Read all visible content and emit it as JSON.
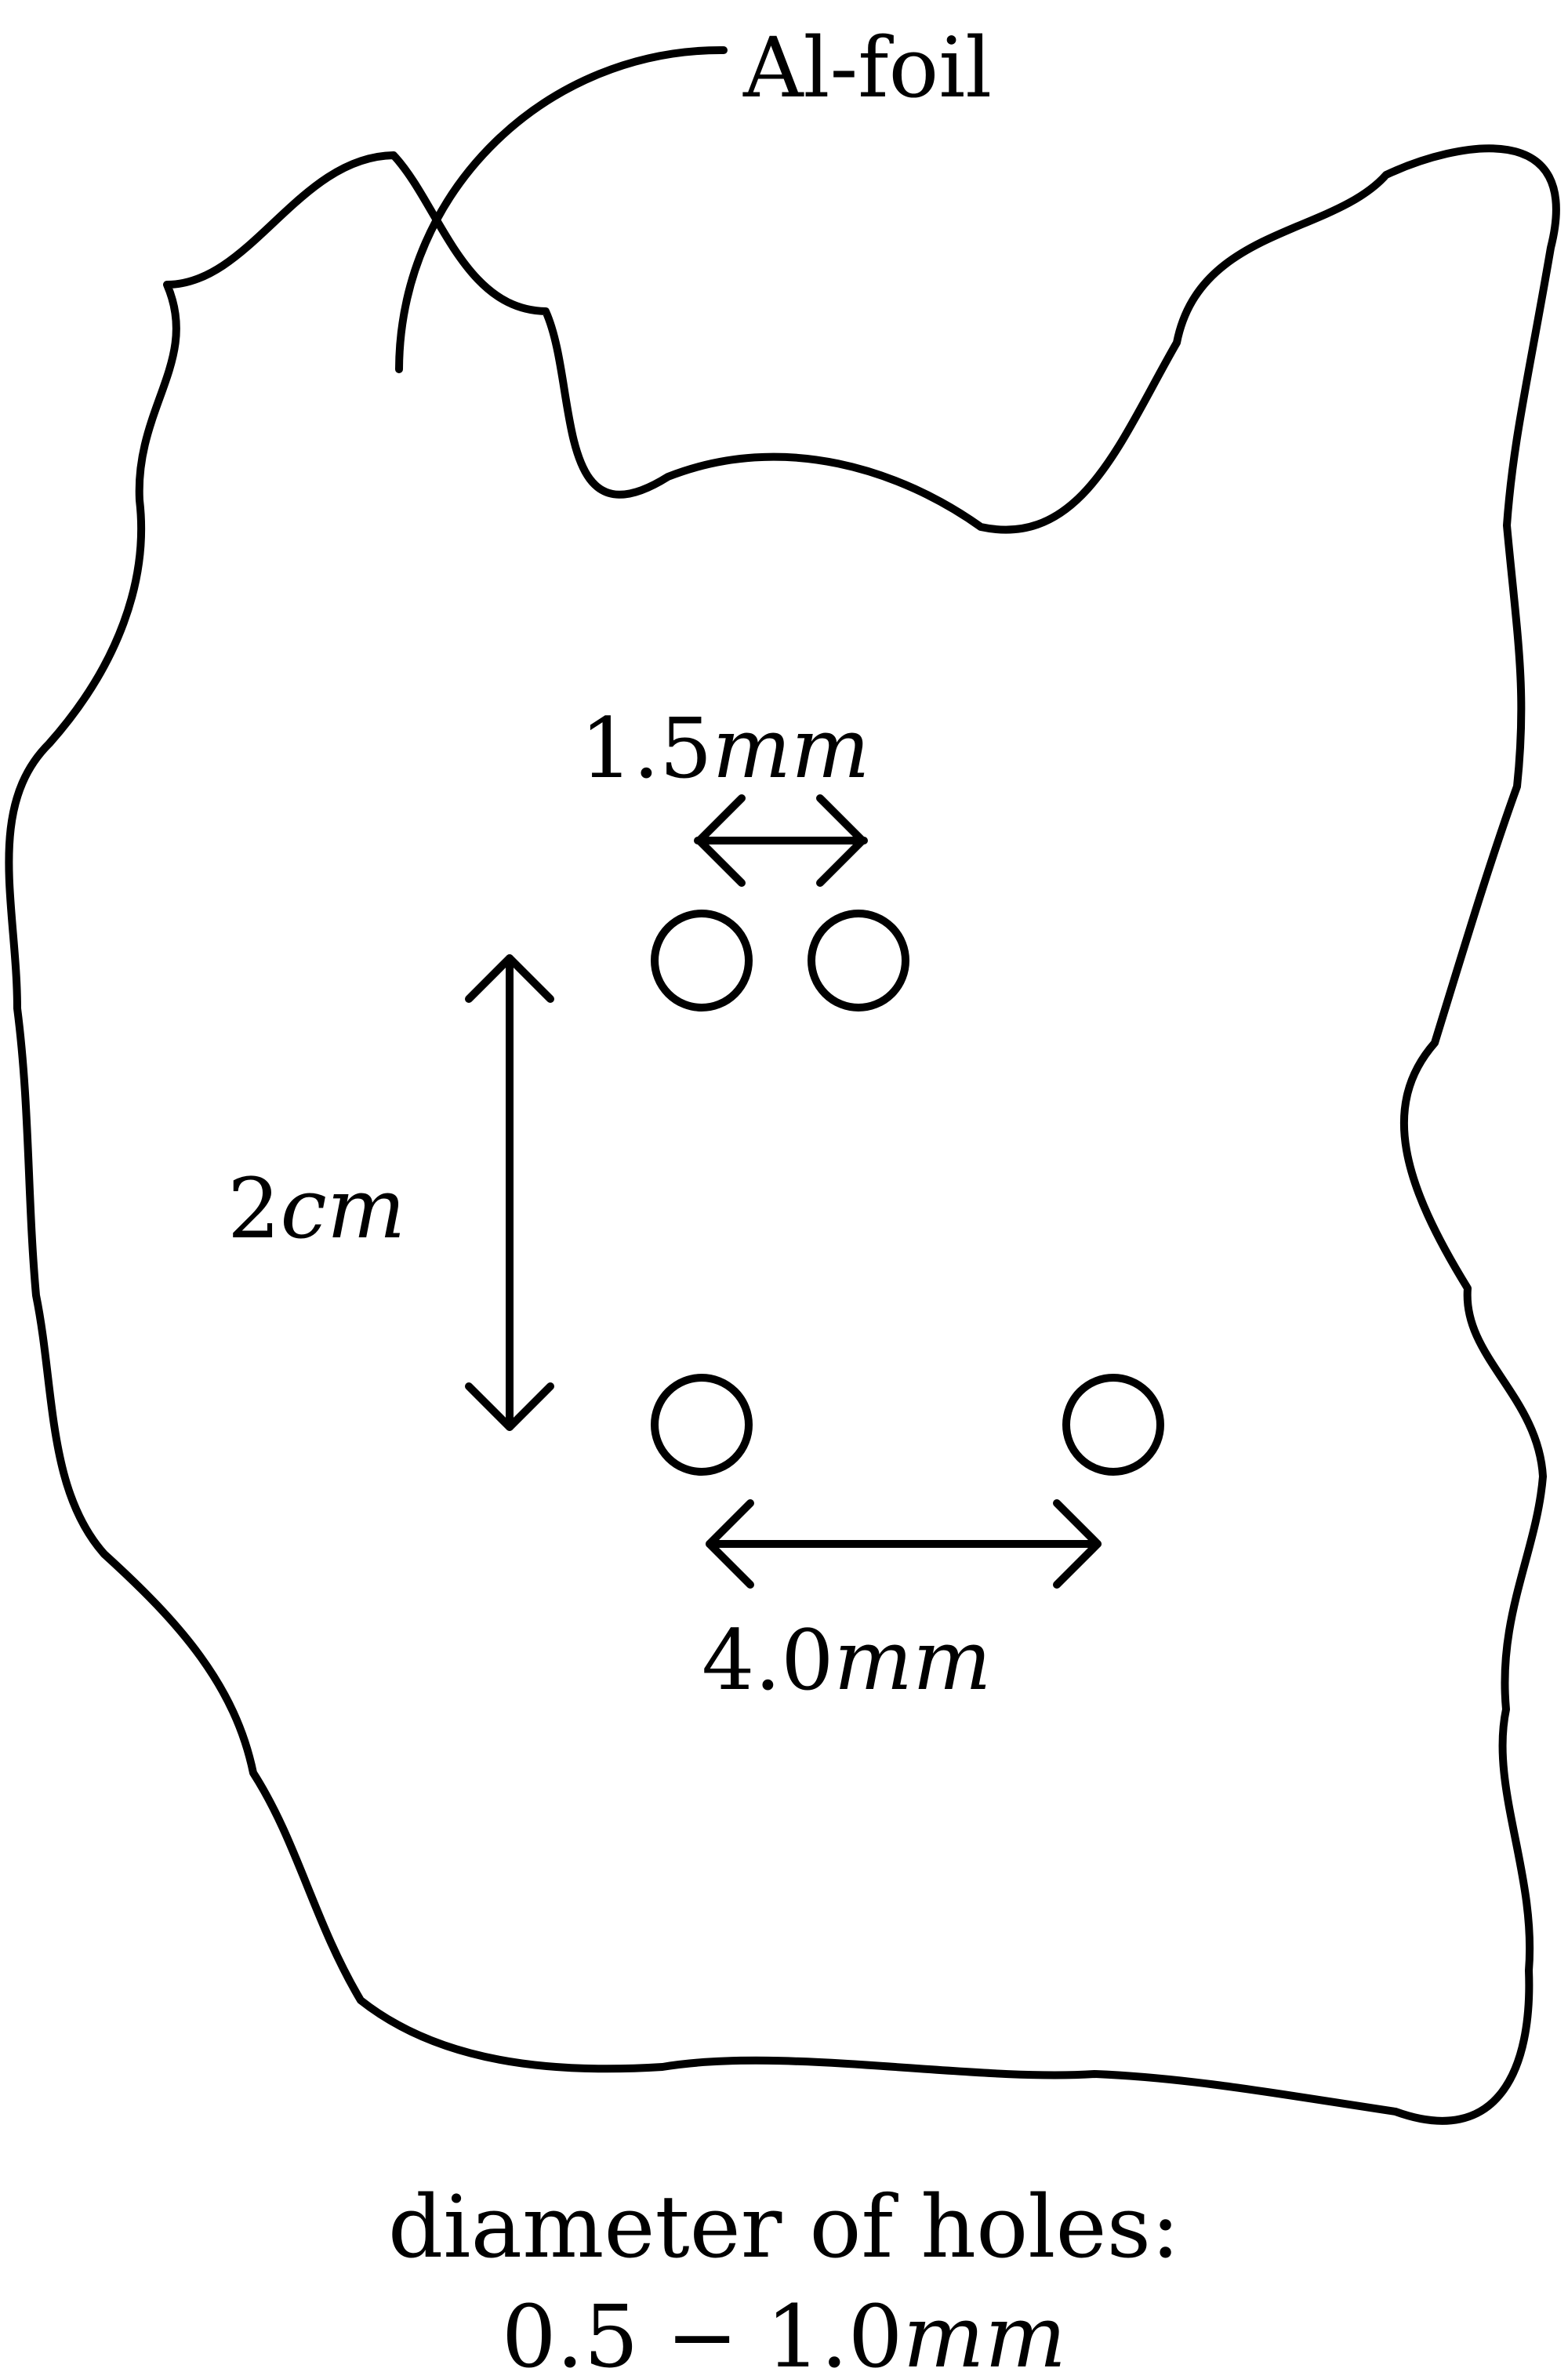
{
  "labels": {
    "foil": "Al-foil",
    "top_spacing_num": "1.5",
    "top_spacing_unit": "mm",
    "vertical_spacing_num": "2",
    "vertical_spacing_unit": "cm",
    "bottom_spacing_num": "4.0",
    "bottom_spacing_unit": "mm",
    "diameter_title": "diameter of holes:",
    "diameter_range_num": "0.5 − 1.0",
    "diameter_range_unit": "mm"
  },
  "colors": {
    "line": "#000000",
    "background": "#ffffff"
  }
}
